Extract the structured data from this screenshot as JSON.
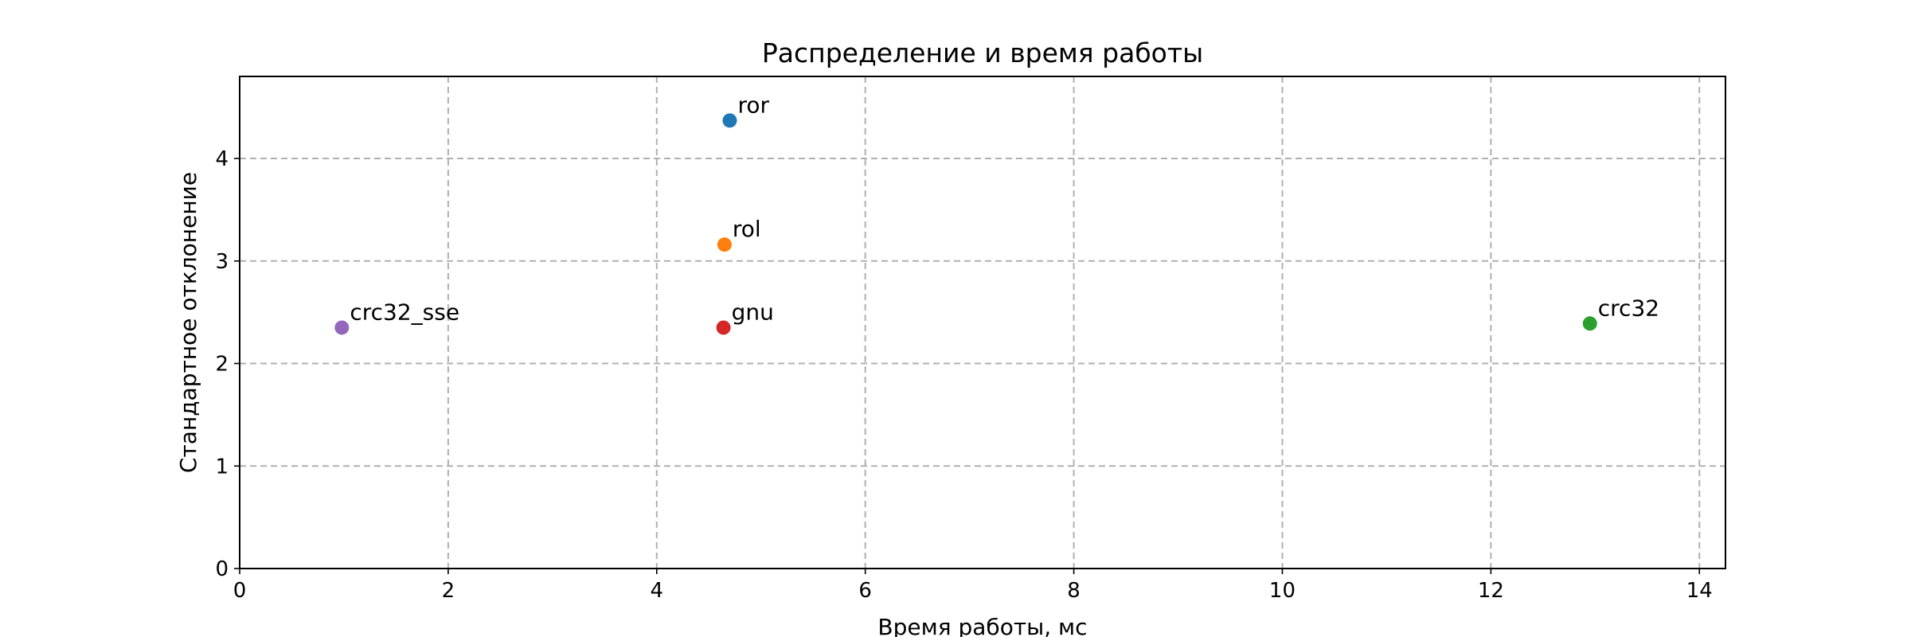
{
  "chart_data": {
    "type": "scatter",
    "title": "Распределение и время работы",
    "xlabel": "Время работы, мс",
    "ylabel": "Стандартное отклонение",
    "xlim": [
      0,
      14.25
    ],
    "ylim": [
      0,
      4.8
    ],
    "xticks": [
      0,
      2,
      4,
      6,
      8,
      10,
      12,
      14
    ],
    "yticks": [
      0,
      1,
      2,
      3,
      4
    ],
    "grid": true,
    "points": [
      {
        "label": "ror",
        "x": 4.7,
        "y": 4.37,
        "color": "#1f77b4"
      },
      {
        "label": "rol",
        "x": 4.65,
        "y": 3.16,
        "color": "#ff7f0e"
      },
      {
        "label": "crc32",
        "x": 12.95,
        "y": 2.39,
        "color": "#2ca02c"
      },
      {
        "label": "gnu",
        "x": 4.64,
        "y": 2.35,
        "color": "#d62728"
      },
      {
        "label": "crc32_sse",
        "x": 0.98,
        "y": 2.35,
        "color": "#9467bd"
      }
    ]
  }
}
